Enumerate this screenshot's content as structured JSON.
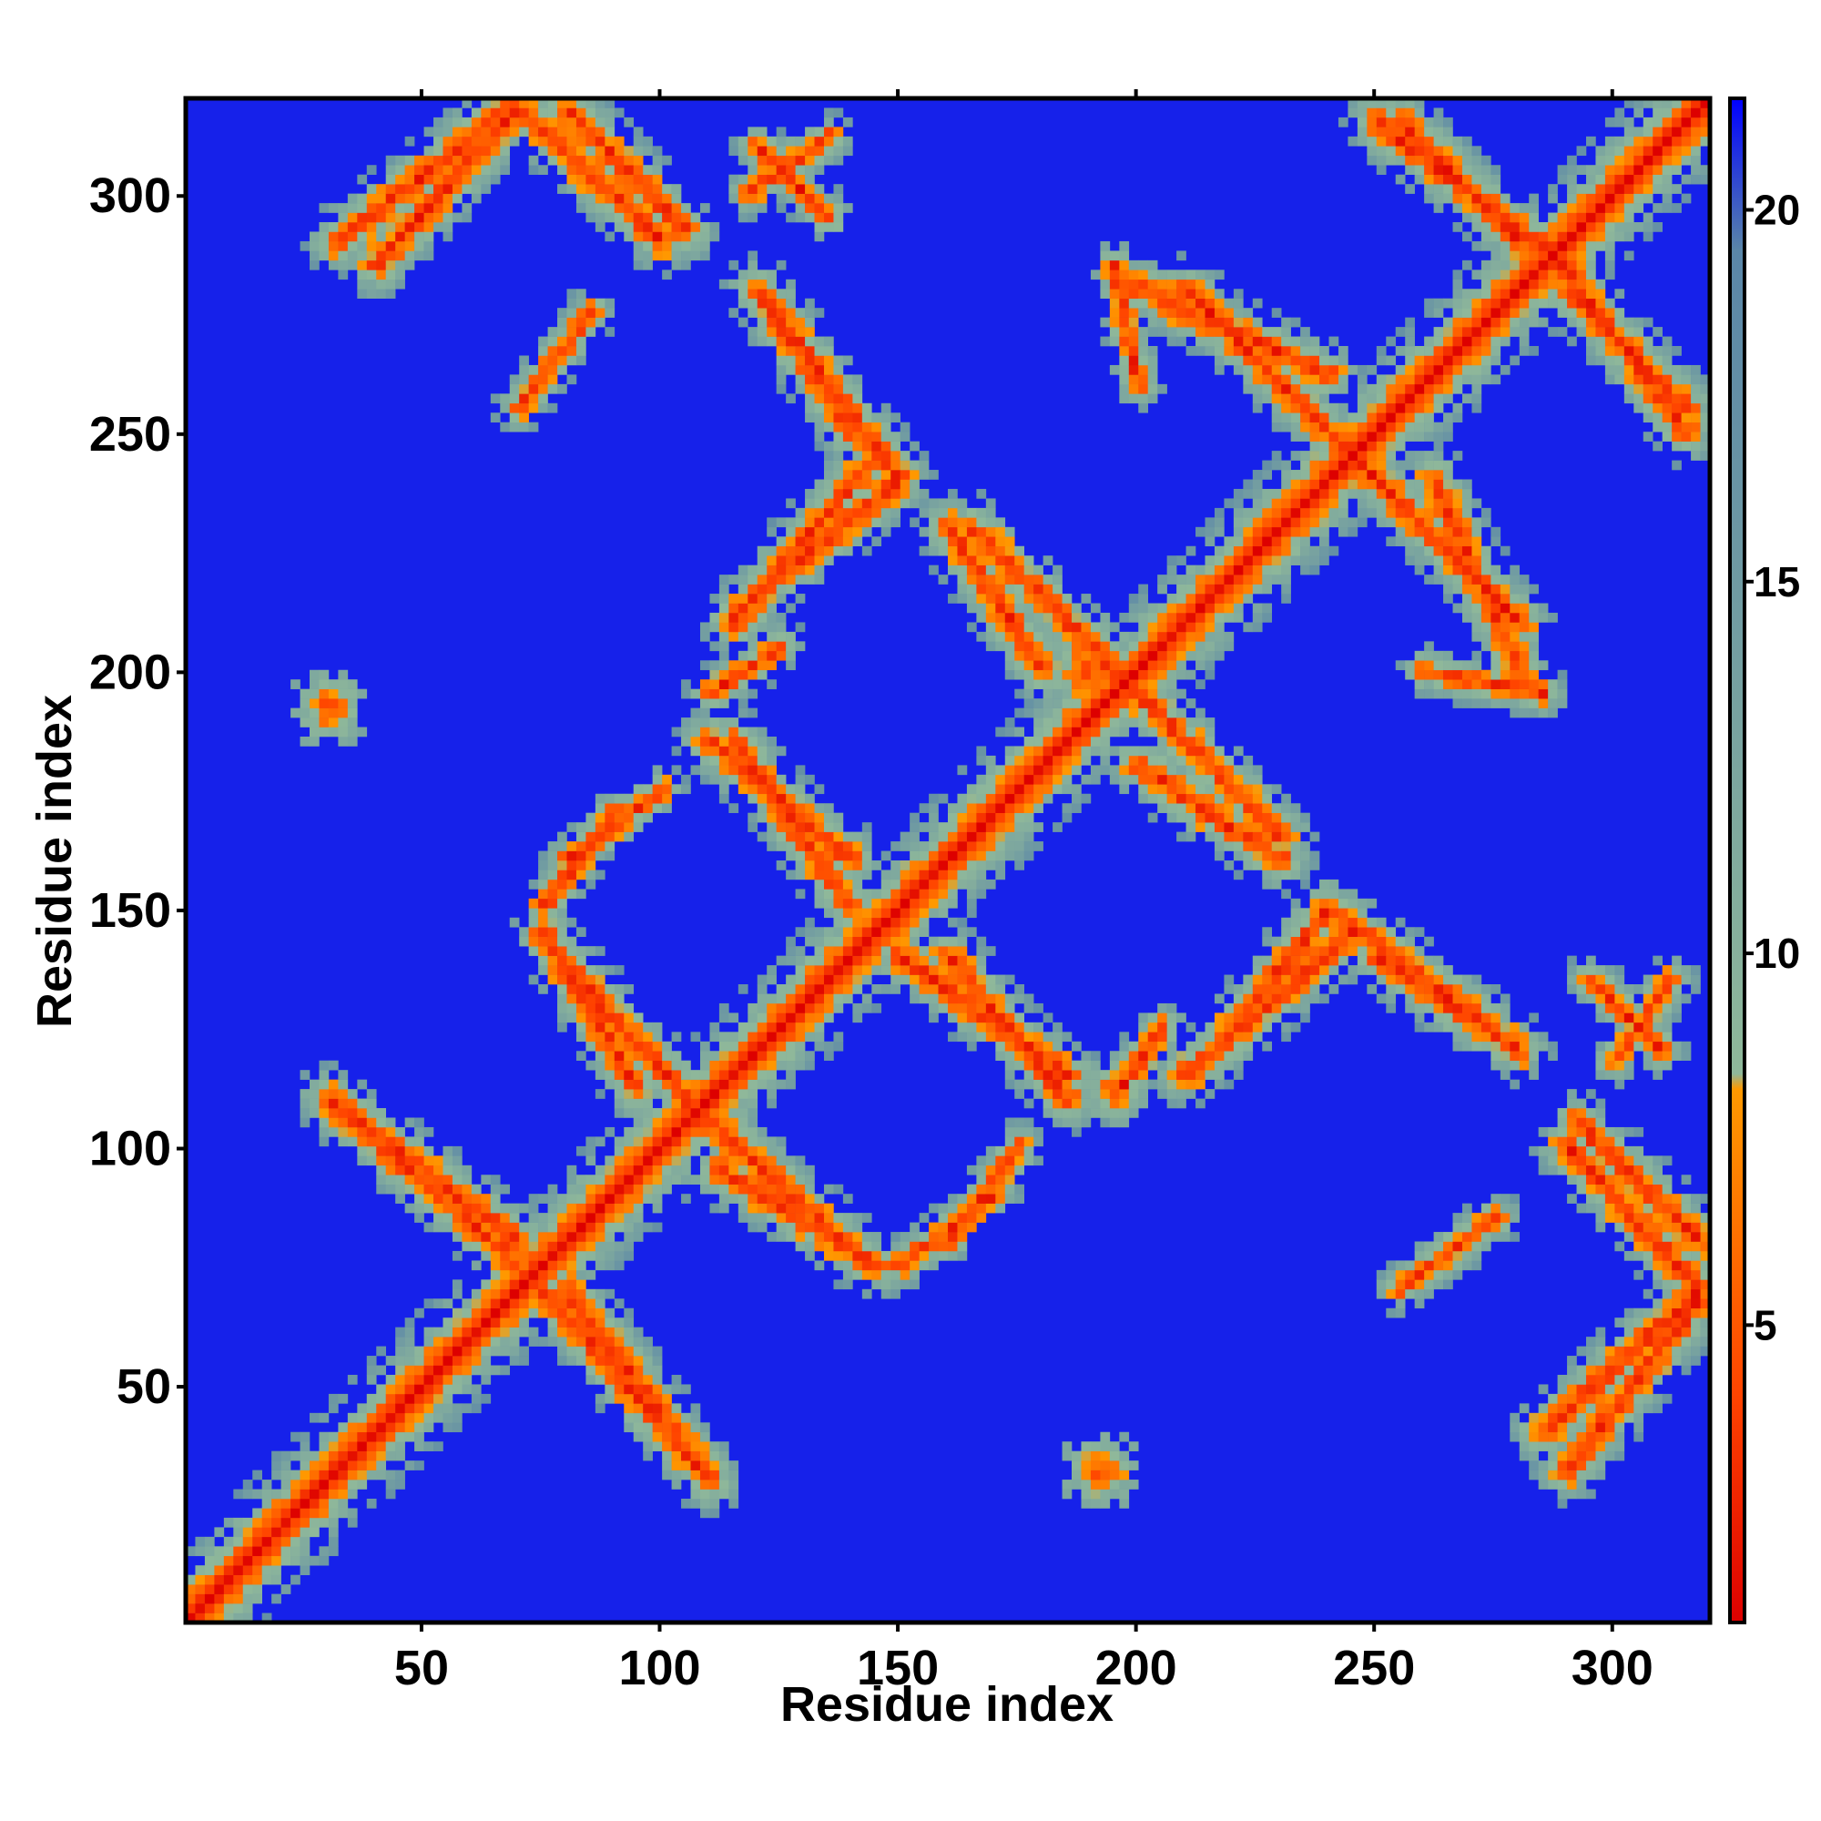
{
  "chart_data": {
    "type": "heatmap",
    "title": "",
    "xlabel": "Residue index",
    "ylabel": "Residue index",
    "xlim": [
      1,
      320
    ],
    "ylim": [
      1,
      320
    ],
    "x_ticks": [
      50,
      100,
      150,
      200,
      250,
      300
    ],
    "y_ticks": [
      50,
      100,
      150,
      200,
      250,
      300
    ],
    "colorbar": {
      "ticks": [
        5,
        10,
        15,
        20
      ],
      "range": [
        1,
        21.5
      ],
      "colors": [
        "#dd0000",
        "#ff4400",
        "#ff9900",
        "#8fb89a",
        "#5a86a8",
        "#0000ff"
      ],
      "stops": [
        0.0,
        0.15,
        0.35,
        0.36,
        0.9,
        1.0
      ]
    },
    "background_value": 21,
    "bands": [
      {
        "label": "diagonal",
        "from": [
          1,
          1
        ],
        "to": [
          320,
          320
        ],
        "width": 6
      },
      {
        "from": [
          32,
          290
        ],
        "to": [
          68,
          318
        ],
        "width": 4
      },
      {
        "from": [
          80,
          318
        ],
        "to": [
          105,
          292
        ],
        "width": 4
      },
      {
        "from": [
          118,
          300
        ],
        "to": [
          135,
          312
        ],
        "width": 3
      },
      {
        "from": [
          120,
          280
        ],
        "to": [
          150,
          240
        ],
        "width": 4
      },
      {
        "from": [
          125,
          220
        ],
        "to": [
          150,
          240
        ],
        "width": 4
      },
      {
        "from": [
          85,
          275
        ],
        "to": [
          70,
          255
        ],
        "width": 3
      },
      {
        "from": [
          110,
          195
        ],
        "to": [
          125,
          205
        ],
        "width": 3
      },
      {
        "from": [
          110,
          185
        ],
        "to": [
          140,
          160
        ],
        "width": 4
      },
      {
        "from": [
          80,
          160
        ],
        "to": [
          100,
          175
        ],
        "width": 3
      },
      {
        "from": [
          30,
          110
        ],
        "to": [
          70,
          80
        ],
        "width": 4
      },
      {
        "from": [
          78,
          140
        ],
        "to": [
          110,
          105
        ],
        "width": 4
      },
      {
        "from": [
          75,
          70
        ],
        "to": [
          110,
          30
        ],
        "width": 4
      },
      {
        "from": [
          112,
          95
        ],
        "to": [
          145,
          75
        ],
        "width": 4
      },
      {
        "from": [
          150,
          75
        ],
        "to": [
          170,
          90
        ],
        "width": 3
      },
      {
        "from": [
          165,
          230
        ],
        "to": [
          195,
          200
        ],
        "width": 4
      },
      {
        "from": [
          150,
          140
        ],
        "to": [
          185,
          115
        ],
        "width": 4
      },
      {
        "from": [
          200,
          180
        ],
        "to": [
          230,
          160
        ],
        "width": 4
      },
      {
        "from": [
          210,
          115
        ],
        "to": [
          245,
          145
        ],
        "width": 4
      },
      {
        "from": [
          250,
          140
        ],
        "to": [
          280,
          120
        ],
        "width": 4
      },
      {
        "from": [
          200,
          280
        ],
        "to": [
          240,
          262
        ],
        "width": 4
      },
      {
        "from": [
          245,
          245
        ],
        "to": [
          280,
          210
        ],
        "width": 4
      },
      {
        "from": [
          250,
          315
        ],
        "to": [
          290,
          285
        ],
        "width": 4
      },
      {
        "from": [
          290,
          280
        ],
        "to": [
          315,
          255
        ],
        "width": 4
      },
      {
        "from": [
          290,
          100
        ],
        "to": [
          318,
          70
        ],
        "width": 4
      },
      {
        "from": [
          285,
          40
        ],
        "to": [
          318,
          70
        ],
        "width": 4
      },
      {
        "from": [
          295,
          135
        ],
        "to": [
          310,
          120
        ],
        "width": 3
      },
      {
        "from": [
          260,
          200
        ],
        "to": [
          285,
          195
        ],
        "width": 3
      }
    ],
    "blobs": [
      {
        "center": [
          30,
          192
        ],
        "radius": 6
      },
      {
        "center": [
          192,
          32
        ],
        "radius": 6
      },
      {
        "center": [
          195,
          112
        ],
        "radius": 5
      },
      {
        "center": [
          190,
          200
        ],
        "radius": 8
      }
    ]
  }
}
